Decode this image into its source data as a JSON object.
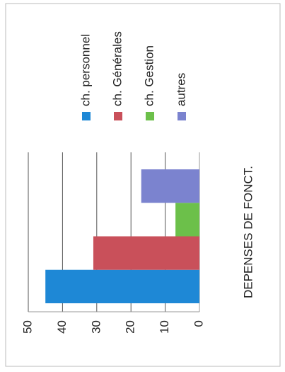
{
  "chart_data": {
    "type": "bar",
    "categories": [
      "DEPENSES DE FONCT."
    ],
    "series": [
      {
        "name": "ch. personnel",
        "color": "#1e88d6",
        "values": [
          45
        ]
      },
      {
        "name": "ch. Générales",
        "color": "#c9505a",
        "values": [
          31
        ]
      },
      {
        "name": "ch. Gestion",
        "color": "#6cc04a",
        "values": [
          7
        ]
      },
      {
        "name": "autres",
        "color": "#7b83cf",
        "values": [
          17
        ]
      }
    ],
    "ylim": [
      0,
      50
    ],
    "yticks": [
      0,
      10,
      20,
      30,
      40,
      50
    ],
    "grid": true,
    "legend": "right"
  }
}
